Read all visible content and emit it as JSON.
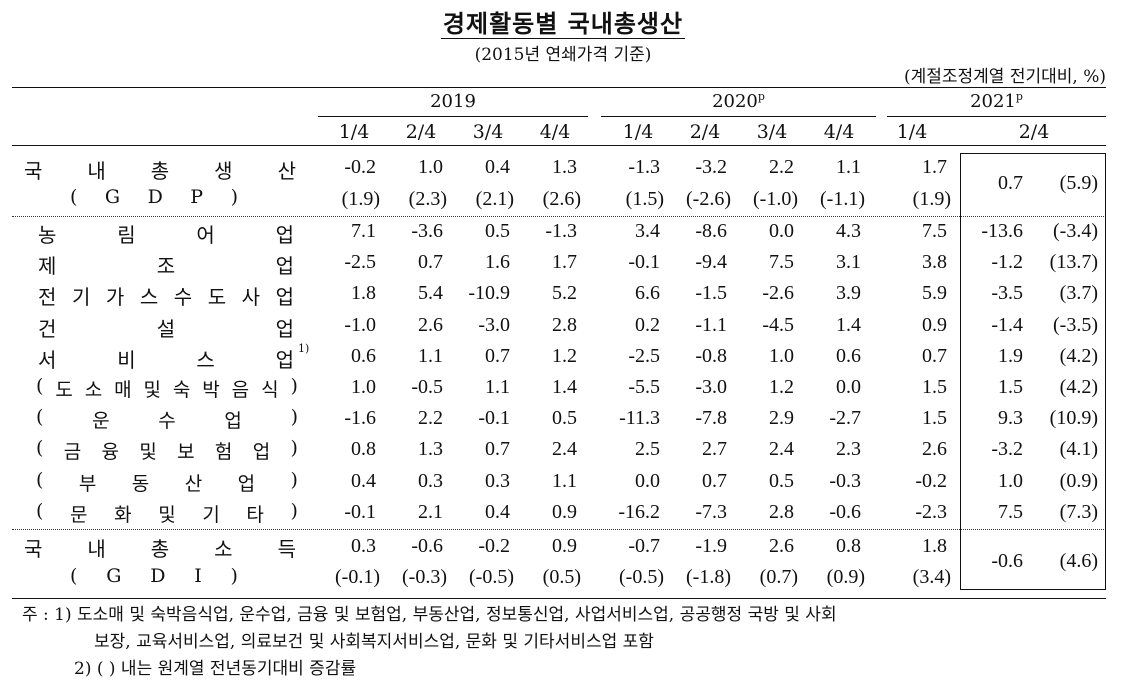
{
  "document": {
    "title": "경제활동별 국내총생산",
    "subtitle": "(2015년 연쇄가격 기준)",
    "unit": "(계절조정계열 전기대비, %)"
  },
  "header": {
    "years": [
      {
        "label": "2019",
        "sup": ""
      },
      {
        "label": "2020",
        "sup": "p"
      },
      {
        "label": "2021",
        "sup": "p"
      }
    ],
    "quarters": [
      "1/4",
      "2/4",
      "3/4",
      "4/4",
      "1/4",
      "2/4",
      "3/4",
      "4/4",
      "1/4",
      "2/4"
    ]
  },
  "rows": {
    "gdp": {
      "label_chars": [
        "국",
        "내",
        "총",
        "생",
        "산"
      ],
      "sub_chars": [
        "(",
        "G",
        "D",
        "P",
        ")"
      ],
      "values": [
        "-0.2",
        "1.0",
        "0.4",
        "1.3",
        "-1.3",
        "-3.2",
        "2.2",
        "1.1",
        "1.7"
      ],
      "yoy": [
        "(1.9)",
        "(2.3)",
        "(2.1)",
        "(2.6)",
        "(1.5)",
        "(-2.6)",
        "(-1.0)",
        "(-1.1)",
        "(1.9)"
      ],
      "latest_value": "0.7",
      "latest_yoy": "(5.9)"
    },
    "industries": [
      {
        "chars": [
          "농",
          "림",
          "어",
          "업"
        ],
        "note": "",
        "values": [
          "7.1",
          "-3.6",
          "0.5",
          "-1.3",
          "3.4",
          "-8.6",
          "0.0",
          "4.3",
          "7.5"
        ],
        "latest_value": "-13.6",
        "latest_yoy": "(-3.4)"
      },
      {
        "chars": [
          "제",
          "조",
          "업"
        ],
        "note": "",
        "values": [
          "-2.5",
          "0.7",
          "1.6",
          "1.7",
          "-0.1",
          "-9.4",
          "7.5",
          "3.1",
          "3.8"
        ],
        "latest_value": "-1.2",
        "latest_yoy": "(13.7)"
      },
      {
        "chars": [
          "전",
          "기",
          "가",
          "스",
          "수",
          "도",
          "사",
          "업"
        ],
        "note": "",
        "values": [
          "1.8",
          "5.4",
          "-10.9",
          "5.2",
          "6.6",
          "-1.5",
          "-2.6",
          "3.9",
          "5.9"
        ],
        "latest_value": "-3.5",
        "latest_yoy": "(3.7)"
      },
      {
        "chars": [
          "건",
          "설",
          "업"
        ],
        "note": "",
        "values": [
          "-1.0",
          "2.6",
          "-3.0",
          "2.8",
          "0.2",
          "-1.1",
          "-4.5",
          "1.4",
          "0.9"
        ],
        "latest_value": "-1.4",
        "latest_yoy": "(-3.5)"
      },
      {
        "chars": [
          "서",
          "비",
          "스",
          "업"
        ],
        "note": "1)",
        "values": [
          "0.6",
          "1.1",
          "0.7",
          "1.2",
          "-2.5",
          "-0.8",
          "1.0",
          "0.6",
          "0.7"
        ],
        "latest_value": "1.9",
        "latest_yoy": "(4.2)"
      },
      {
        "chars": [
          "(",
          "도",
          "소",
          "매",
          "및",
          "숙",
          "박",
          "음",
          "식",
          ")"
        ],
        "note": "",
        "values": [
          "1.0",
          "-0.5",
          "1.1",
          "1.4",
          "-5.5",
          "-3.0",
          "1.2",
          "0.0",
          "1.5"
        ],
        "latest_value": "1.5",
        "latest_yoy": "(4.2)"
      },
      {
        "chars": [
          "(",
          "운",
          "수",
          "업",
          ")"
        ],
        "note": "",
        "values": [
          "-1.6",
          "2.2",
          "-0.1",
          "0.5",
          "-11.3",
          "-7.8",
          "2.9",
          "-2.7",
          "1.5"
        ],
        "latest_value": "9.3",
        "latest_yoy": "(10.9)"
      },
      {
        "chars": [
          "(",
          "금",
          "융",
          "및",
          "보",
          "험",
          "업",
          ")"
        ],
        "note": "",
        "values": [
          "0.8",
          "1.3",
          "0.7",
          "2.4",
          "2.5",
          "2.7",
          "2.4",
          "2.3",
          "2.6"
        ],
        "latest_value": "-3.2",
        "latest_yoy": "(4.1)"
      },
      {
        "chars": [
          "(",
          "부",
          "동",
          "산",
          "업",
          ")"
        ],
        "note": "",
        "values": [
          "0.4",
          "0.3",
          "0.3",
          "1.1",
          "0.0",
          "0.7",
          "0.5",
          "-0.3",
          "-0.2"
        ],
        "latest_value": "1.0",
        "latest_yoy": "(0.9)"
      },
      {
        "chars": [
          "(",
          "문",
          "화",
          "및",
          "기",
          "타",
          ")"
        ],
        "note": "",
        "values": [
          "-0.1",
          "2.1",
          "0.4",
          "0.9",
          "-16.2",
          "-7.3",
          "2.8",
          "-0.6",
          "-2.3"
        ],
        "latest_value": "7.5",
        "latest_yoy": "(7.3)"
      }
    ],
    "gdi": {
      "label_chars": [
        "국",
        "내",
        "총",
        "소",
        "득"
      ],
      "sub_chars": [
        "(",
        "G",
        "D",
        "I",
        ")"
      ],
      "values": [
        "0.3",
        "-0.6",
        "-0.2",
        "0.9",
        "-0.7",
        "-1.9",
        "2.6",
        "0.8",
        "1.8"
      ],
      "yoy": [
        "(-0.1)",
        "(-0.3)",
        "(-0.5)",
        "(0.5)",
        "(-0.5)",
        "(-1.8)",
        "(0.7)",
        "(0.9)",
        "(3.4)"
      ],
      "latest_value": "-0.6",
      "latest_yoy": "(4.6)"
    }
  },
  "notes": {
    "line1": "주 : 1) 도소매 및 숙박음식업, 운수업, 금융 및 보험업, 부동산업, 정보통신업, 사업서비스업, 공공행정 국방 및 사회",
    "line2": "보장, 교육서비스업, 의료보건 및 사회복지서비스업, 문화 및 기타서비스업 포함",
    "line3": "2) (   ) 내는 원계열 전년동기대비 증감률"
  }
}
